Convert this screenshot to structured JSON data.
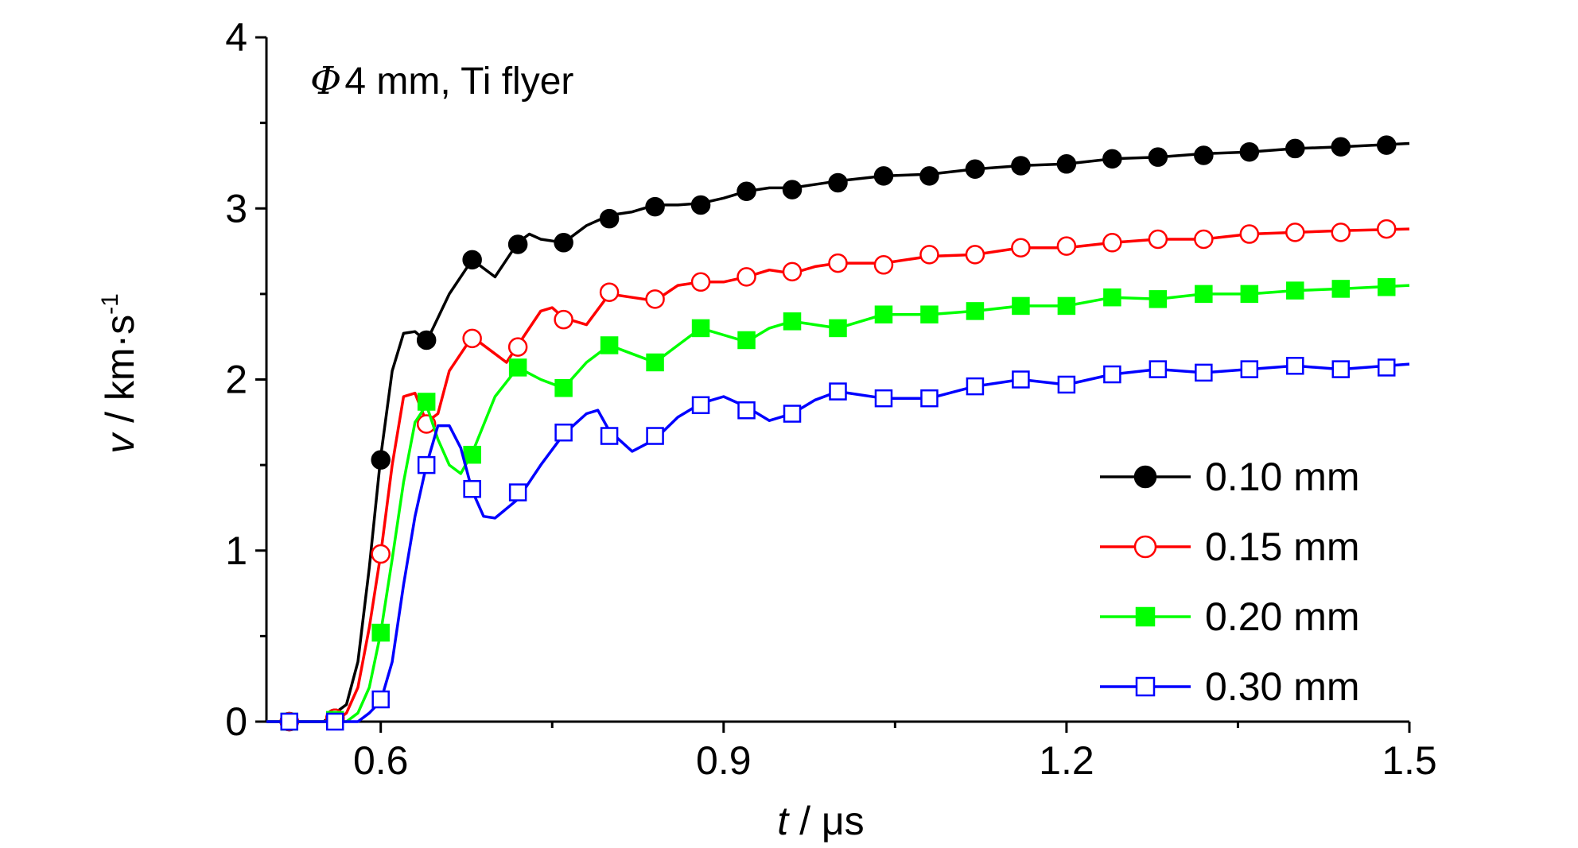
{
  "chart_data": {
    "type": "line",
    "annotation": {
      "symbol": "Φ",
      "text": "4 mm, Ti flyer"
    },
    "xlabel": {
      "var": "t",
      "unit": " / μs"
    },
    "ylabel": {
      "var": "v",
      "unit": " / km·s",
      "sup": "-1"
    },
    "xlim": [
      0.5,
      1.5
    ],
    "ylim": [
      0,
      4
    ],
    "xticks": [
      0.6,
      0.9,
      1.2,
      1.5
    ],
    "xtick_labels": [
      "0.6",
      "0.9",
      "1.2",
      "1.5"
    ],
    "yticks": [
      0,
      1,
      2,
      3,
      4
    ],
    "ytick_labels": [
      "0",
      "1",
      "2",
      "3",
      "4"
    ],
    "legend_position": "bottom-right",
    "grid": false,
    "series": [
      {
        "name": "0.10 mm",
        "color": "#000000",
        "marker": "circle",
        "filled": true,
        "line": [
          [
            0.5,
            0
          ],
          [
            0.55,
            0
          ],
          [
            0.56,
            0.05
          ],
          [
            0.57,
            0.1
          ],
          [
            0.58,
            0.35
          ],
          [
            0.59,
            0.9
          ],
          [
            0.6,
            1.55
          ],
          [
            0.61,
            2.05
          ],
          [
            0.62,
            2.27
          ],
          [
            0.63,
            2.28
          ],
          [
            0.64,
            2.22
          ],
          [
            0.66,
            2.5
          ],
          [
            0.68,
            2.7
          ],
          [
            0.7,
            2.6
          ],
          [
            0.72,
            2.8
          ],
          [
            0.73,
            2.85
          ],
          [
            0.74,
            2.82
          ],
          [
            0.76,
            2.8
          ],
          [
            0.78,
            2.9
          ],
          [
            0.8,
            2.96
          ],
          [
            0.82,
            2.98
          ],
          [
            0.84,
            3.02
          ],
          [
            0.86,
            3.02
          ],
          [
            0.88,
            3.03
          ],
          [
            0.9,
            3.06
          ],
          [
            0.92,
            3.1
          ],
          [
            0.94,
            3.12
          ],
          [
            0.96,
            3.12
          ],
          [
            1.0,
            3.16
          ],
          [
            1.04,
            3.19
          ],
          [
            1.08,
            3.2
          ],
          [
            1.12,
            3.23
          ],
          [
            1.16,
            3.25
          ],
          [
            1.2,
            3.26
          ],
          [
            1.24,
            3.29
          ],
          [
            1.28,
            3.3
          ],
          [
            1.32,
            3.32
          ],
          [
            1.36,
            3.33
          ],
          [
            1.4,
            3.35
          ],
          [
            1.44,
            3.36
          ],
          [
            1.5,
            3.38
          ]
        ],
        "markers": [
          [
            0.52,
            0
          ],
          [
            0.56,
            0.02
          ],
          [
            0.6,
            1.53
          ],
          [
            0.64,
            2.23
          ],
          [
            0.68,
            2.7
          ],
          [
            0.72,
            2.79
          ],
          [
            0.76,
            2.8
          ],
          [
            0.8,
            2.94
          ],
          [
            0.84,
            3.01
          ],
          [
            0.88,
            3.02
          ],
          [
            0.92,
            3.1
          ],
          [
            0.96,
            3.11
          ],
          [
            1.0,
            3.15
          ],
          [
            1.04,
            3.19
          ],
          [
            1.08,
            3.19
          ],
          [
            1.12,
            3.23
          ],
          [
            1.16,
            3.25
          ],
          [
            1.2,
            3.26
          ],
          [
            1.24,
            3.29
          ],
          [
            1.28,
            3.3
          ],
          [
            1.32,
            3.31
          ],
          [
            1.36,
            3.33
          ],
          [
            1.4,
            3.35
          ],
          [
            1.44,
            3.36
          ],
          [
            1.48,
            3.37
          ]
        ]
      },
      {
        "name": "0.15 mm",
        "color": "#ff0000",
        "marker": "circle",
        "filled": false,
        "line": [
          [
            0.5,
            0
          ],
          [
            0.56,
            0
          ],
          [
            0.57,
            0.05
          ],
          [
            0.58,
            0.2
          ],
          [
            0.59,
            0.55
          ],
          [
            0.6,
            0.98
          ],
          [
            0.61,
            1.5
          ],
          [
            0.62,
            1.9
          ],
          [
            0.63,
            1.92
          ],
          [
            0.64,
            1.75
          ],
          [
            0.65,
            1.8
          ],
          [
            0.66,
            2.05
          ],
          [
            0.68,
            2.25
          ],
          [
            0.7,
            2.15
          ],
          [
            0.71,
            2.1
          ],
          [
            0.72,
            2.2
          ],
          [
            0.74,
            2.4
          ],
          [
            0.75,
            2.42
          ],
          [
            0.76,
            2.36
          ],
          [
            0.78,
            2.32
          ],
          [
            0.8,
            2.5
          ],
          [
            0.82,
            2.48
          ],
          [
            0.84,
            2.46
          ],
          [
            0.86,
            2.55
          ],
          [
            0.88,
            2.57
          ],
          [
            0.9,
            2.57
          ],
          [
            0.92,
            2.6
          ],
          [
            0.94,
            2.64
          ],
          [
            0.96,
            2.62
          ],
          [
            0.98,
            2.66
          ],
          [
            1.0,
            2.68
          ],
          [
            1.04,
            2.68
          ],
          [
            1.08,
            2.72
          ],
          [
            1.12,
            2.73
          ],
          [
            1.16,
            2.77
          ],
          [
            1.2,
            2.77
          ],
          [
            1.24,
            2.8
          ],
          [
            1.28,
            2.82
          ],
          [
            1.32,
            2.82
          ],
          [
            1.36,
            2.85
          ],
          [
            1.4,
            2.86
          ],
          [
            1.44,
            2.87
          ],
          [
            1.5,
            2.88
          ]
        ],
        "markers": [
          [
            0.52,
            0
          ],
          [
            0.56,
            0.02
          ],
          [
            0.6,
            0.98
          ],
          [
            0.64,
            1.74
          ],
          [
            0.68,
            2.24
          ],
          [
            0.72,
            2.19
          ],
          [
            0.76,
            2.35
          ],
          [
            0.8,
            2.51
          ],
          [
            0.84,
            2.47
          ],
          [
            0.88,
            2.57
          ],
          [
            0.92,
            2.6
          ],
          [
            0.96,
            2.63
          ],
          [
            1.0,
            2.68
          ],
          [
            1.04,
            2.67
          ],
          [
            1.08,
            2.73
          ],
          [
            1.12,
            2.73
          ],
          [
            1.16,
            2.77
          ],
          [
            1.2,
            2.78
          ],
          [
            1.24,
            2.8
          ],
          [
            1.28,
            2.82
          ],
          [
            1.32,
            2.82
          ],
          [
            1.36,
            2.85
          ],
          [
            1.4,
            2.86
          ],
          [
            1.44,
            2.86
          ],
          [
            1.48,
            2.88
          ]
        ]
      },
      {
        "name": "0.20 mm",
        "color": "#00ff00",
        "marker": "square",
        "filled": true,
        "line": [
          [
            0.5,
            0
          ],
          [
            0.57,
            0
          ],
          [
            0.58,
            0.05
          ],
          [
            0.59,
            0.2
          ],
          [
            0.6,
            0.52
          ],
          [
            0.61,
            0.95
          ],
          [
            0.62,
            1.4
          ],
          [
            0.63,
            1.75
          ],
          [
            0.64,
            1.85
          ],
          [
            0.65,
            1.65
          ],
          [
            0.66,
            1.5
          ],
          [
            0.67,
            1.45
          ],
          [
            0.68,
            1.57
          ],
          [
            0.7,
            1.9
          ],
          [
            0.72,
            2.07
          ],
          [
            0.74,
            2.0
          ],
          [
            0.76,
            1.95
          ],
          [
            0.78,
            2.1
          ],
          [
            0.8,
            2.2
          ],
          [
            0.82,
            2.15
          ],
          [
            0.84,
            2.1
          ],
          [
            0.86,
            2.2
          ],
          [
            0.88,
            2.3
          ],
          [
            0.9,
            2.26
          ],
          [
            0.92,
            2.22
          ],
          [
            0.94,
            2.3
          ],
          [
            0.96,
            2.34
          ],
          [
            0.98,
            2.32
          ],
          [
            1.0,
            2.3
          ],
          [
            1.04,
            2.38
          ],
          [
            1.08,
            2.38
          ],
          [
            1.12,
            2.4
          ],
          [
            1.16,
            2.43
          ],
          [
            1.2,
            2.43
          ],
          [
            1.24,
            2.48
          ],
          [
            1.28,
            2.47
          ],
          [
            1.32,
            2.5
          ],
          [
            1.36,
            2.5
          ],
          [
            1.4,
            2.52
          ],
          [
            1.44,
            2.53
          ],
          [
            1.5,
            2.55
          ]
        ],
        "markers": [
          [
            0.52,
            0
          ],
          [
            0.56,
            0.01
          ],
          [
            0.6,
            0.52
          ],
          [
            0.64,
            1.87
          ],
          [
            0.68,
            1.56
          ],
          [
            0.72,
            2.07
          ],
          [
            0.76,
            1.95
          ],
          [
            0.8,
            2.2
          ],
          [
            0.84,
            2.1
          ],
          [
            0.88,
            2.3
          ],
          [
            0.92,
            2.23
          ],
          [
            0.96,
            2.34
          ],
          [
            1.0,
            2.3
          ],
          [
            1.04,
            2.38
          ],
          [
            1.08,
            2.38
          ],
          [
            1.12,
            2.4
          ],
          [
            1.16,
            2.43
          ],
          [
            1.2,
            2.43
          ],
          [
            1.24,
            2.48
          ],
          [
            1.28,
            2.47
          ],
          [
            1.32,
            2.5
          ],
          [
            1.36,
            2.5
          ],
          [
            1.4,
            2.52
          ],
          [
            1.44,
            2.53
          ],
          [
            1.48,
            2.54
          ]
        ]
      },
      {
        "name": "0.30 mm",
        "color": "#0000ff",
        "marker": "square",
        "filled": false,
        "line": [
          [
            0.5,
            0
          ],
          [
            0.58,
            0
          ],
          [
            0.59,
            0.05
          ],
          [
            0.6,
            0.12
          ],
          [
            0.61,
            0.35
          ],
          [
            0.62,
            0.8
          ],
          [
            0.63,
            1.2
          ],
          [
            0.64,
            1.5
          ],
          [
            0.65,
            1.73
          ],
          [
            0.66,
            1.73
          ],
          [
            0.67,
            1.6
          ],
          [
            0.68,
            1.35
          ],
          [
            0.69,
            1.2
          ],
          [
            0.7,
            1.19
          ],
          [
            0.72,
            1.3
          ],
          [
            0.74,
            1.5
          ],
          [
            0.76,
            1.68
          ],
          [
            0.78,
            1.8
          ],
          [
            0.79,
            1.82
          ],
          [
            0.8,
            1.7
          ],
          [
            0.82,
            1.58
          ],
          [
            0.84,
            1.65
          ],
          [
            0.86,
            1.78
          ],
          [
            0.88,
            1.86
          ],
          [
            0.9,
            1.9
          ],
          [
            0.92,
            1.84
          ],
          [
            0.94,
            1.76
          ],
          [
            0.96,
            1.8
          ],
          [
            0.98,
            1.88
          ],
          [
            1.0,
            1.93
          ],
          [
            1.04,
            1.89
          ],
          [
            1.08,
            1.89
          ],
          [
            1.12,
            1.96
          ],
          [
            1.16,
            2.0
          ],
          [
            1.2,
            1.97
          ],
          [
            1.24,
            2.03
          ],
          [
            1.28,
            2.06
          ],
          [
            1.32,
            2.04
          ],
          [
            1.36,
            2.06
          ],
          [
            1.4,
            2.08
          ],
          [
            1.44,
            2.06
          ],
          [
            1.5,
            2.09
          ]
        ],
        "markers": [
          [
            0.52,
            0
          ],
          [
            0.56,
            0.0
          ],
          [
            0.6,
            0.13
          ],
          [
            0.64,
            1.5
          ],
          [
            0.68,
            1.36
          ],
          [
            0.72,
            1.34
          ],
          [
            0.76,
            1.69
          ],
          [
            0.8,
            1.67
          ],
          [
            0.84,
            1.67
          ],
          [
            0.88,
            1.85
          ],
          [
            0.92,
            1.82
          ],
          [
            0.96,
            1.8
          ],
          [
            1.0,
            1.93
          ],
          [
            1.04,
            1.89
          ],
          [
            1.08,
            1.89
          ],
          [
            1.12,
            1.96
          ],
          [
            1.16,
            2.0
          ],
          [
            1.2,
            1.97
          ],
          [
            1.24,
            2.03
          ],
          [
            1.28,
            2.06
          ],
          [
            1.32,
            2.04
          ],
          [
            1.36,
            2.06
          ],
          [
            1.4,
            2.08
          ],
          [
            1.44,
            2.06
          ],
          [
            1.48,
            2.07
          ]
        ]
      }
    ]
  }
}
